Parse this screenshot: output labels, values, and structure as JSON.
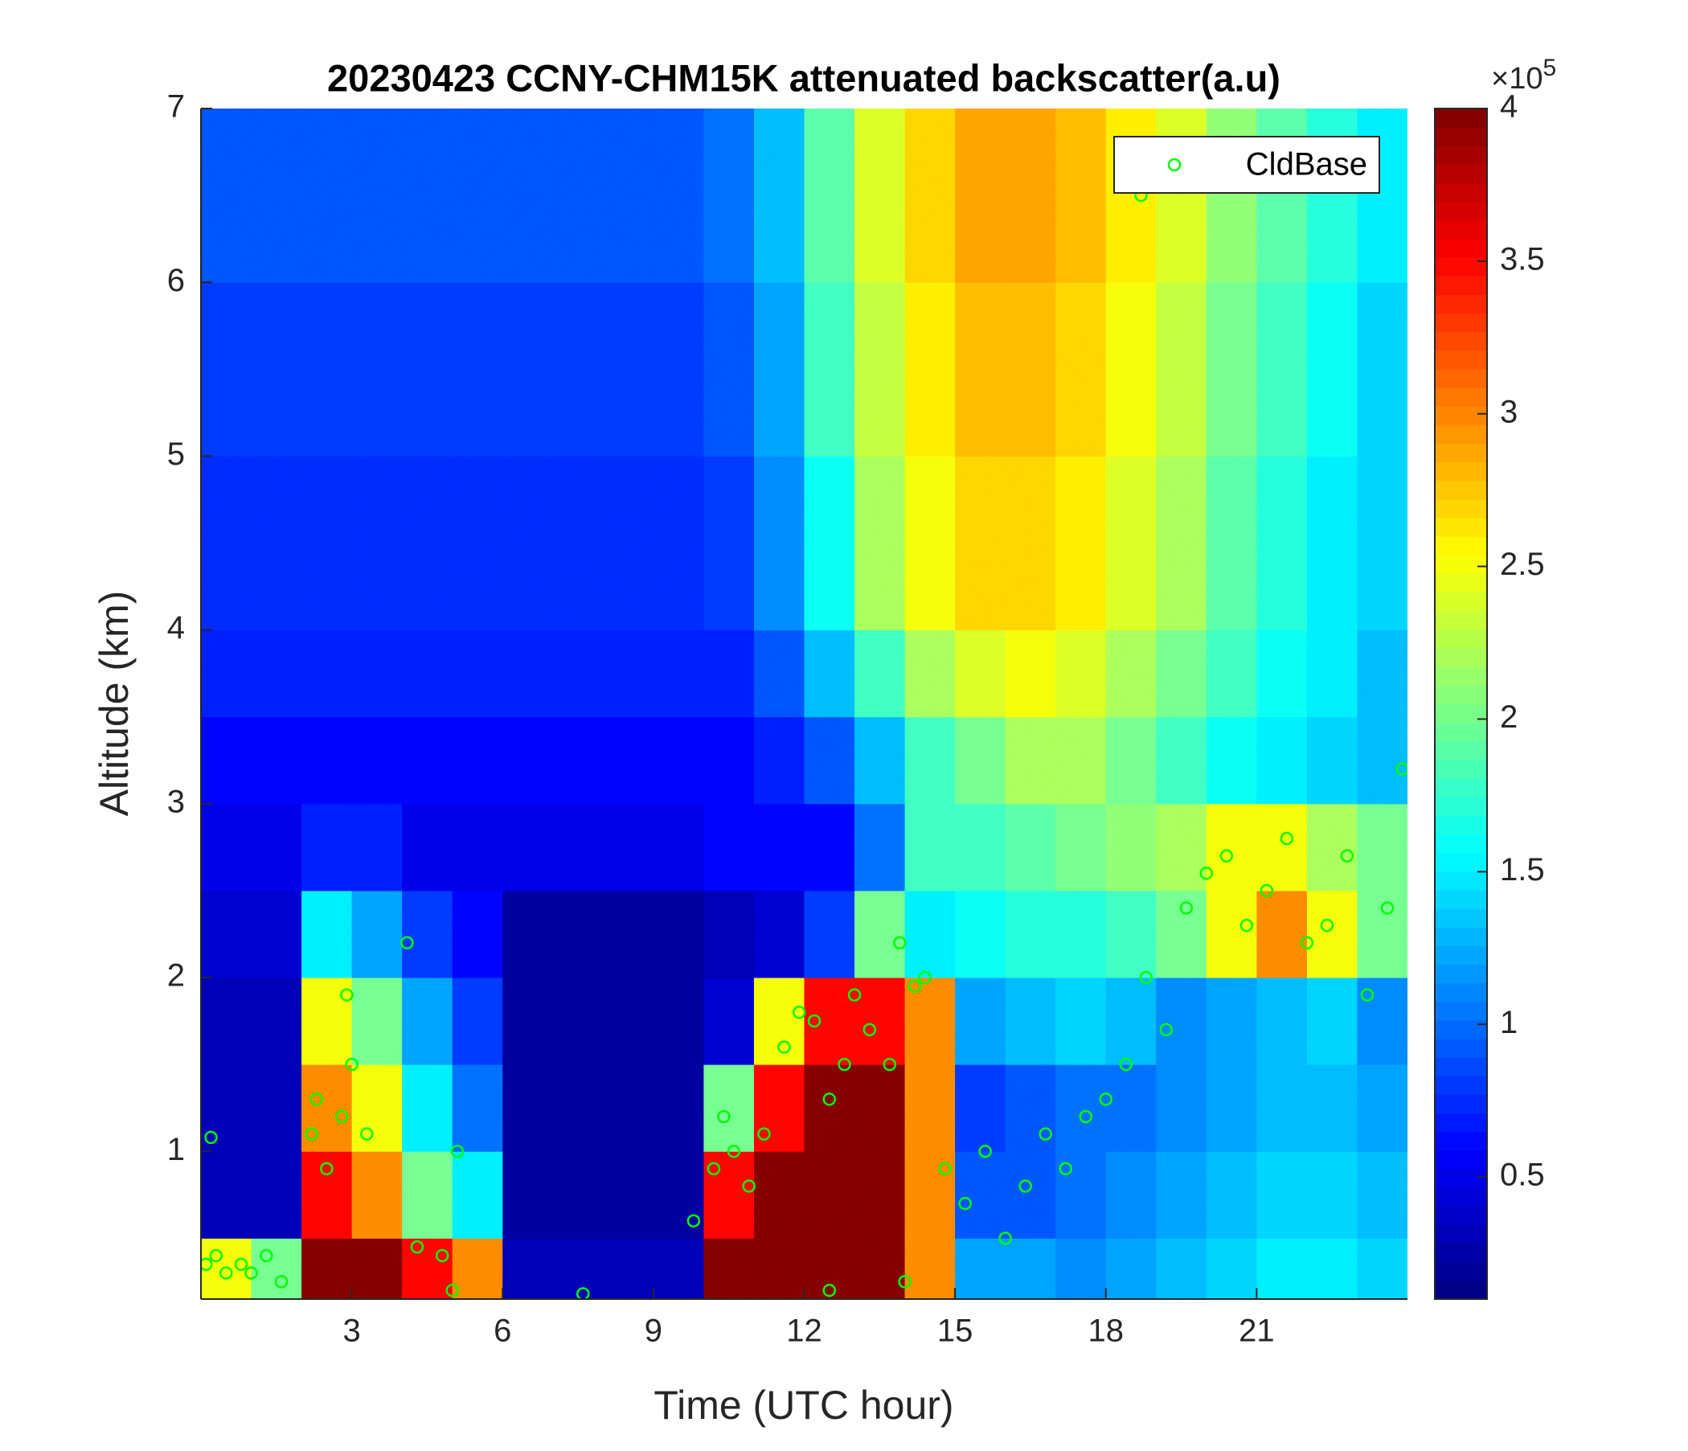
{
  "chart_data": {
    "type": "heatmap",
    "title": "20230423 CCNY-CHM15K attenuated backscatter(a.u)",
    "xlabel": "Time (UTC hour)",
    "ylabel": "Altitude (km)",
    "xlim": [
      0,
      24
    ],
    "xticks": [
      3,
      6,
      9,
      12,
      15,
      18,
      21
    ],
    "ylim": [
      0.15,
      7
    ],
    "yticks": [
      1,
      2,
      3,
      4,
      5,
      6,
      7
    ],
    "colormap": "jet",
    "clim": [
      10000,
      400000
    ],
    "cticks": [
      {
        "value": 50000,
        "label": "0.5"
      },
      {
        "value": 100000,
        "label": "1"
      },
      {
        "value": 150000,
        "label": "1.5"
      },
      {
        "value": 200000,
        "label": "2"
      },
      {
        "value": 250000,
        "label": "2.5"
      },
      {
        "value": 300000,
        "label": "3"
      },
      {
        "value": 350000,
        "label": "3.5"
      },
      {
        "value": 400000,
        "label": "4"
      }
    ],
    "colorbar_multiplier": {
      "base": "×10",
      "exponent": "5"
    },
    "x_edges": [
      0,
      1,
      2,
      3,
      4,
      5,
      6,
      7,
      8,
      9,
      10,
      11,
      12,
      13,
      14,
      15,
      16,
      17,
      18,
      19,
      20,
      21,
      22,
      23,
      24
    ],
    "y_edges": [
      0.15,
      0.5,
      1,
      1.5,
      2,
      2.5,
      3,
      3.5,
      4,
      5,
      6,
      7
    ],
    "z": [
      [
        250000,
        200000,
        400000,
        400000,
        350000,
        300000,
        30000,
        30000,
        30000,
        30000,
        400000,
        400000,
        400000,
        400000,
        300000,
        120000,
        120000,
        110000,
        120000,
        130000,
        140000,
        150000,
        150000,
        140000
      ],
      [
        30000,
        30000,
        350000,
        300000,
        200000,
        150000,
        20000,
        20000,
        20000,
        20000,
        350000,
        400000,
        400000,
        400000,
        300000,
        90000,
        90000,
        100000,
        110000,
        120000,
        130000,
        140000,
        140000,
        130000
      ],
      [
        30000,
        30000,
        300000,
        250000,
        150000,
        100000,
        20000,
        20000,
        20000,
        20000,
        200000,
        350000,
        400000,
        400000,
        300000,
        80000,
        90000,
        100000,
        100000,
        110000,
        120000,
        130000,
        130000,
        120000
      ],
      [
        30000,
        30000,
        250000,
        200000,
        120000,
        80000,
        20000,
        20000,
        20000,
        20000,
        40000,
        250000,
        350000,
        350000,
        300000,
        120000,
        130000,
        140000,
        130000,
        110000,
        120000,
        130000,
        140000,
        110000
      ],
      [
        40000,
        40000,
        150000,
        120000,
        80000,
        60000,
        20000,
        20000,
        20000,
        20000,
        30000,
        40000,
        80000,
        200000,
        150000,
        160000,
        170000,
        170000,
        180000,
        200000,
        250000,
        300000,
        250000,
        200000
      ],
      [
        50000,
        50000,
        70000,
        70000,
        50000,
        50000,
        50000,
        50000,
        50000,
        50000,
        60000,
        60000,
        60000,
        100000,
        180000,
        180000,
        190000,
        200000,
        210000,
        220000,
        250000,
        250000,
        220000,
        200000
      ],
      [
        60000,
        60000,
        60000,
        60000,
        60000,
        60000,
        60000,
        60000,
        60000,
        60000,
        60000,
        70000,
        90000,
        130000,
        180000,
        200000,
        220000,
        220000,
        200000,
        180000,
        160000,
        150000,
        140000,
        130000
      ],
      [
        70000,
        70000,
        70000,
        70000,
        70000,
        70000,
        70000,
        70000,
        70000,
        70000,
        70000,
        90000,
        130000,
        180000,
        220000,
        240000,
        250000,
        240000,
        220000,
        200000,
        180000,
        160000,
        150000,
        130000
      ],
      [
        75000,
        75000,
        75000,
        75000,
        75000,
        75000,
        75000,
        75000,
        75000,
        75000,
        80000,
        110000,
        160000,
        220000,
        250000,
        270000,
        270000,
        260000,
        240000,
        220000,
        190000,
        170000,
        150000,
        140000
      ],
      [
        80000,
        80000,
        80000,
        80000,
        80000,
        80000,
        80000,
        80000,
        80000,
        80000,
        90000,
        120000,
        180000,
        230000,
        260000,
        280000,
        280000,
        270000,
        250000,
        230000,
        200000,
        180000,
        160000,
        140000
      ],
      [
        90000,
        90000,
        90000,
        90000,
        90000,
        90000,
        90000,
        90000,
        90000,
        90000,
        100000,
        130000,
        190000,
        240000,
        270000,
        290000,
        290000,
        280000,
        260000,
        240000,
        210000,
        190000,
        170000,
        150000
      ]
    ],
    "series": [
      {
        "name": "CldBase",
        "color": "#00ff00",
        "marker": "circle",
        "x": [
          0.1,
          0.3,
          0.5,
          0.8,
          1.0,
          1.3,
          1.6,
          0.2,
          2.2,
          2.3,
          2.5,
          2.8,
          3.0,
          3.3,
          2.9,
          4.1,
          4.3,
          4.8,
          5.1,
          5.0,
          7.6,
          9.8,
          10.2,
          10.4,
          10.6,
          10.9,
          11.2,
          11.6,
          11.9,
          12.2,
          12.5,
          12.8,
          13.0,
          13.3,
          13.7,
          13.9,
          14.2,
          14.4,
          14.8,
          15.2,
          15.6,
          16.0,
          16.4,
          16.8,
          17.2,
          17.6,
          18.0,
          18.4,
          18.8,
          19.2,
          19.6,
          20.0,
          20.4,
          20.8,
          21.2,
          21.6,
          22.0,
          22.4,
          22.8,
          23.2,
          23.6,
          23.9,
          18.7,
          12.5,
          14.0
        ],
        "y": [
          0.35,
          0.4,
          0.3,
          0.35,
          0.3,
          0.4,
          0.25,
          1.08,
          1.1,
          1.3,
          0.9,
          1.2,
          1.5,
          1.1,
          1.9,
          2.2,
          0.45,
          0.4,
          1.0,
          0.2,
          0.18,
          0.6,
          0.9,
          1.2,
          1.0,
          0.8,
          1.1,
          1.6,
          1.8,
          1.75,
          1.3,
          1.5,
          1.9,
          1.7,
          1.5,
          2.2,
          1.95,
          2.0,
          0.9,
          0.7,
          1.0,
          0.5,
          0.8,
          1.1,
          0.9,
          1.2,
          1.3,
          1.5,
          2.0,
          1.7,
          2.4,
          2.6,
          2.7,
          2.3,
          2.5,
          2.8,
          2.2,
          2.3,
          2.7,
          1.9,
          2.4,
          3.2,
          6.5,
          0.2,
          0.25
        ]
      }
    ],
    "legend": "upper right"
  }
}
